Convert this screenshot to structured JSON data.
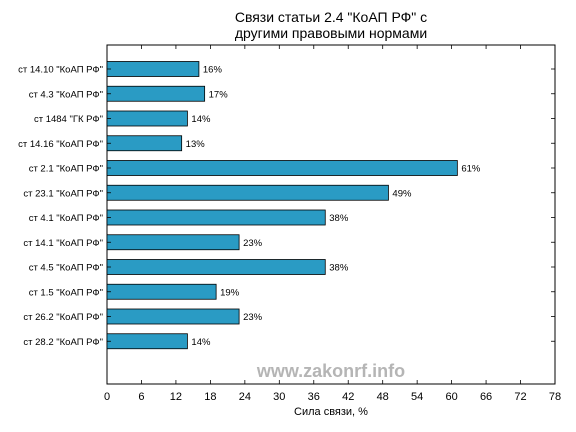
{
  "chart_data": {
    "type": "bar",
    "orientation": "horizontal",
    "title": "Связи статьи 2.4 \"КоАП РФ\" с\nдругими правовыми нормами",
    "xlabel": "Сила связи, %",
    "ylabel": "",
    "xlim": [
      0,
      78
    ],
    "xticks": [
      0,
      6,
      12,
      18,
      24,
      30,
      36,
      42,
      48,
      54,
      60,
      66,
      72,
      78
    ],
    "grid": false,
    "bar_color": "#2a9bc4",
    "categories": [
      "ст 14.10 \"КоАП РФ\"",
      "ст 4.3 \"КоАП РФ\"",
      "ст 1484 \"ГК РФ\"",
      "ст 14.16 \"КоАП РФ\"",
      "ст 2.1 \"КоАП РФ\"",
      "ст 23.1 \"КоАП РФ\"",
      "ст 4.1 \"КоАП РФ\"",
      "ст 14.1 \"КоАП РФ\"",
      "ст 4.5 \"КоАП РФ\"",
      "ст 1.5 \"КоАП РФ\"",
      "ст 26.2 \"КоАП РФ\"",
      "ст 28.2 \"КоАП РФ\""
    ],
    "values": [
      16,
      17,
      14,
      13,
      61,
      49,
      38,
      23,
      38,
      19,
      23,
      14
    ],
    "value_labels": [
      "16%",
      "17%",
      "14%",
      "13%",
      "61%",
      "49%",
      "38%",
      "23%",
      "38%",
      "19%",
      "23%",
      "14%"
    ]
  },
  "watermark": "www.zakonrf.info"
}
